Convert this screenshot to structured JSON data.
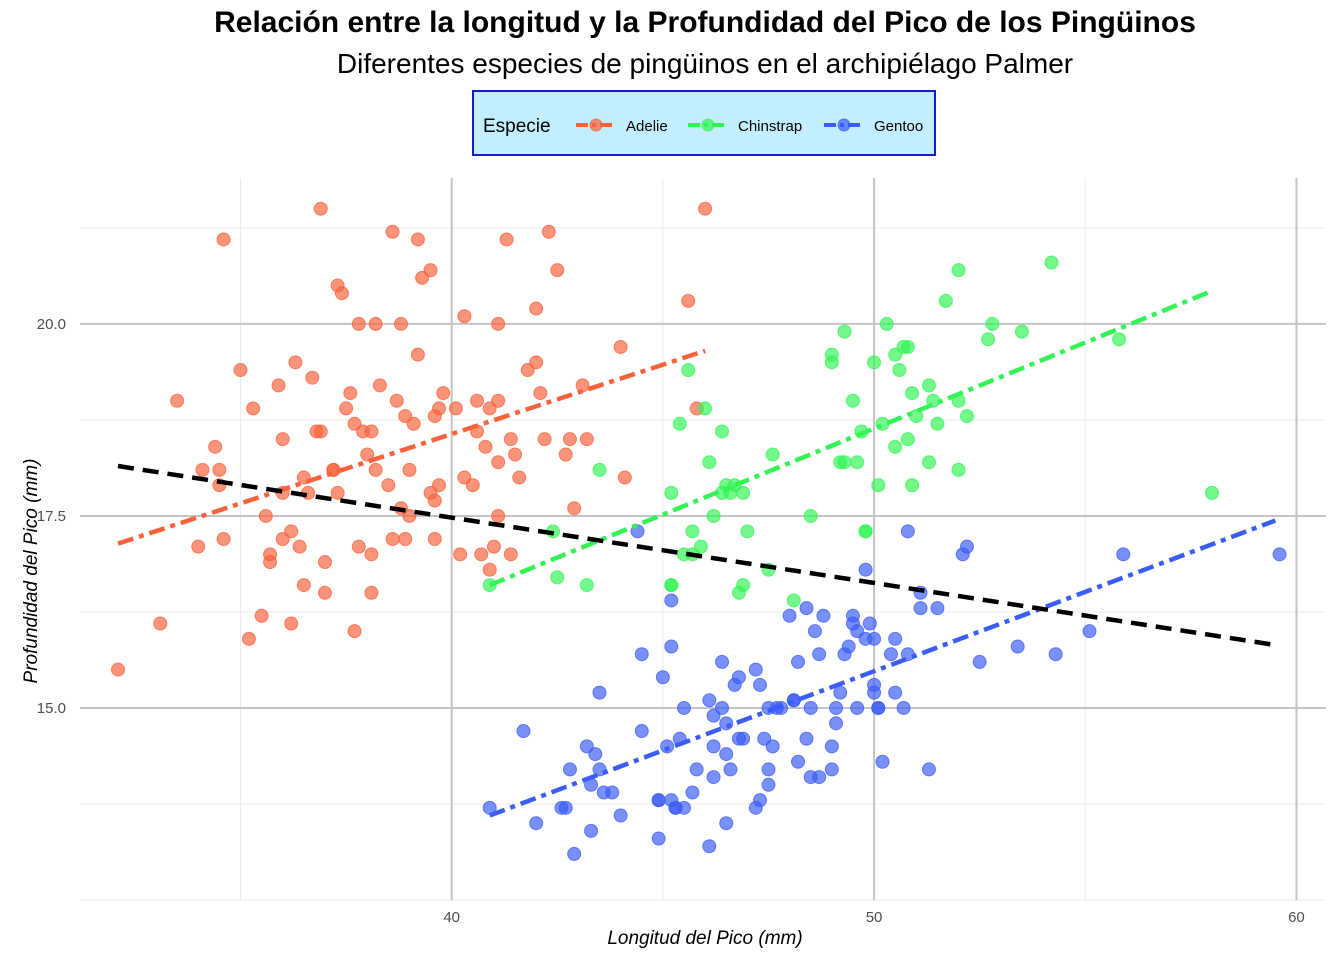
{
  "chart_data": {
    "type": "scatter",
    "title": "Relación entre la longitud y la Profundidad del Pico de los Pingüinos",
    "subtitle": "Diferentes especies de pingüinos en el archipiélago Palmer",
    "xlabel": "Longitud del Pico (mm)",
    "ylabel": "Profundidad del Pico (mm)",
    "xlim": [
      31.2,
      60.7
    ],
    "ylim": [
      12.5,
      21.9
    ],
    "x_ticks": [
      40,
      50,
      60
    ],
    "y_ticks": [
      15.0,
      17.5,
      20.0
    ],
    "x_tick_labels": [
      "40",
      "50",
      "60"
    ],
    "y_tick_labels": [
      "15.0",
      "17.5",
      "20.0"
    ],
    "grid": true,
    "legend": {
      "title": "Especie",
      "position": "top"
    },
    "series": [
      {
        "name": "Adelie",
        "color": "#f8623b",
        "trend": [
          [
            32.1,
            17.14
          ],
          [
            46.0,
            19.65
          ]
        ],
        "points": [
          [
            32.1,
            15.5
          ],
          [
            33.1,
            16.1
          ],
          [
            33.5,
            19.0
          ],
          [
            34.0,
            17.1
          ],
          [
            34.1,
            18.1
          ],
          [
            34.4,
            18.4
          ],
          [
            34.5,
            18.1
          ],
          [
            34.6,
            21.1
          ],
          [
            34.6,
            17.2
          ],
          [
            35.3,
            18.9
          ],
          [
            35.5,
            16.2
          ],
          [
            35.6,
            17.5
          ],
          [
            35.7,
            16.9
          ],
          [
            35.9,
            19.2
          ],
          [
            36.0,
            17.8
          ],
          [
            36.0,
            18.5
          ],
          [
            36.2,
            16.1
          ],
          [
            36.4,
            17.1
          ],
          [
            36.5,
            16.6
          ],
          [
            36.6,
            17.8
          ],
          [
            36.7,
            19.3
          ],
          [
            36.9,
            21.5
          ],
          [
            37.0,
            16.9
          ],
          [
            37.2,
            18.1
          ],
          [
            37.3,
            17.8
          ],
          [
            37.5,
            18.9
          ],
          [
            37.6,
            19.1
          ],
          [
            37.7,
            18.7
          ],
          [
            37.8,
            17.1
          ],
          [
            37.8,
            20.0
          ],
          [
            37.9,
            18.6
          ],
          [
            38.1,
            17.0
          ],
          [
            38.2,
            18.1
          ],
          [
            38.3,
            19.2
          ],
          [
            38.5,
            17.9
          ],
          [
            38.6,
            21.2
          ],
          [
            38.7,
            19.0
          ],
          [
            38.8,
            17.6
          ],
          [
            38.9,
            18.8
          ],
          [
            39.0,
            17.5
          ],
          [
            39.1,
            18.7
          ],
          [
            39.2,
            19.6
          ],
          [
            39.3,
            20.6
          ],
          [
            39.5,
            17.8
          ],
          [
            39.6,
            17.7
          ],
          [
            39.7,
            18.9
          ],
          [
            39.8,
            19.1
          ],
          [
            40.1,
            18.9
          ],
          [
            40.2,
            17.0
          ],
          [
            40.3,
            18.0
          ],
          [
            40.5,
            17.9
          ],
          [
            40.6,
            18.6
          ],
          [
            40.7,
            17.0
          ],
          [
            40.8,
            18.4
          ],
          [
            40.9,
            18.9
          ],
          [
            41.0,
            17.1
          ],
          [
            41.1,
            18.2
          ],
          [
            41.1,
            19.0
          ],
          [
            41.3,
            21.1
          ],
          [
            41.4,
            18.5
          ],
          [
            41.5,
            18.3
          ],
          [
            41.6,
            18.0
          ],
          [
            41.8,
            19.4
          ],
          [
            42.0,
            20.2
          ],
          [
            42.1,
            19.1
          ],
          [
            42.2,
            18.5
          ],
          [
            42.3,
            21.2
          ],
          [
            42.5,
            20.7
          ],
          [
            42.7,
            18.3
          ],
          [
            42.8,
            18.5
          ],
          [
            42.9,
            17.6
          ],
          [
            43.1,
            19.2
          ],
          [
            43.2,
            18.5
          ],
          [
            44.0,
            19.7
          ],
          [
            44.1,
            18.0
          ],
          [
            45.6,
            20.3
          ],
          [
            45.8,
            18.9
          ],
          [
            46.0,
            21.5
          ],
          [
            35.2,
            15.9
          ],
          [
            35.7,
            17.0
          ],
          [
            36.3,
            19.5
          ],
          [
            36.8,
            18.6
          ],
          [
            37.0,
            16.5
          ],
          [
            37.4,
            20.4
          ],
          [
            37.7,
            16.0
          ],
          [
            38.0,
            18.3
          ],
          [
            38.1,
            16.5
          ],
          [
            38.8,
            20.0
          ],
          [
            39.0,
            18.1
          ],
          [
            39.5,
            20.7
          ],
          [
            39.7,
            17.9
          ],
          [
            40.3,
            20.1
          ],
          [
            40.9,
            16.8
          ],
          [
            41.1,
            17.5
          ],
          [
            41.4,
            17.0
          ],
          [
            34.5,
            17.9
          ],
          [
            35.0,
            19.4
          ],
          [
            36.0,
            17.2
          ],
          [
            36.2,
            17.3
          ],
          [
            37.3,
            20.5
          ],
          [
            38.2,
            20.0
          ],
          [
            38.6,
            17.2
          ],
          [
            39.2,
            21.1
          ],
          [
            39.6,
            18.8
          ],
          [
            40.6,
            19.0
          ],
          [
            41.1,
            20.0
          ],
          [
            42.0,
            19.5
          ],
          [
            37.2,
            18.1
          ],
          [
            38.1,
            18.6
          ],
          [
            36.5,
            18.0
          ],
          [
            38.9,
            17.2
          ],
          [
            36.9,
            18.6
          ],
          [
            39.6,
            17.2
          ]
        ]
      },
      {
        "name": "Chinstrap",
        "color": "#32f455",
        "trend": [
          [
            40.9,
            16.6
          ],
          [
            58.0,
            20.43
          ]
        ],
        "points": [
          [
            40.9,
            16.6
          ],
          [
            42.4,
            17.3
          ],
          [
            42.5,
            16.7
          ],
          [
            43.2,
            16.6
          ],
          [
            43.5,
            18.1
          ],
          [
            45.2,
            17.8
          ],
          [
            45.2,
            16.6
          ],
          [
            45.4,
            18.7
          ],
          [
            45.5,
            17.0
          ],
          [
            45.6,
            19.4
          ],
          [
            45.7,
            17.3
          ],
          [
            45.9,
            17.1
          ],
          [
            46.0,
            18.9
          ],
          [
            46.1,
            18.2
          ],
          [
            46.2,
            17.5
          ],
          [
            46.4,
            18.6
          ],
          [
            46.5,
            17.9
          ],
          [
            46.6,
            17.8
          ],
          [
            46.7,
            17.9
          ],
          [
            46.8,
            16.5
          ],
          [
            46.9,
            16.6
          ],
          [
            47.0,
            17.3
          ],
          [
            47.5,
            16.8
          ],
          [
            47.6,
            18.3
          ],
          [
            48.1,
            16.4
          ],
          [
            48.5,
            17.5
          ],
          [
            49.0,
            19.5
          ],
          [
            49.0,
            19.6
          ],
          [
            49.2,
            18.2
          ],
          [
            49.3,
            19.9
          ],
          [
            49.5,
            19.0
          ],
          [
            49.6,
            18.2
          ],
          [
            49.7,
            18.6
          ],
          [
            49.8,
            17.3
          ],
          [
            50.0,
            19.5
          ],
          [
            50.1,
            17.9
          ],
          [
            50.2,
            18.7
          ],
          [
            50.3,
            20.0
          ],
          [
            50.5,
            18.4
          ],
          [
            50.6,
            19.4
          ],
          [
            50.7,
            19.7
          ],
          [
            50.8,
            18.5
          ],
          [
            50.9,
            19.1
          ],
          [
            51.0,
            18.8
          ],
          [
            51.3,
            18.2
          ],
          [
            51.4,
            19.0
          ],
          [
            51.5,
            18.7
          ],
          [
            51.7,
            20.3
          ],
          [
            52.0,
            18.1
          ],
          [
            52.0,
            19.0
          ],
          [
            52.0,
            20.7
          ],
          [
            52.2,
            18.8
          ],
          [
            52.7,
            19.8
          ],
          [
            52.8,
            20.0
          ],
          [
            53.5,
            19.9
          ],
          [
            54.2,
            20.8
          ],
          [
            55.8,
            19.8
          ],
          [
            58.0,
            17.8
          ],
          [
            45.2,
            16.6
          ],
          [
            46.9,
            17.8
          ],
          [
            49.3,
            18.2
          ],
          [
            50.8,
            19.7
          ],
          [
            51.3,
            19.2
          ],
          [
            50.5,
            19.6
          ],
          [
            50.9,
            17.9
          ],
          [
            49.8,
            17.3
          ],
          [
            45.7,
            17.0
          ],
          [
            46.4,
            17.8
          ]
        ]
      },
      {
        "name": "Gentoo",
        "color": "#3b5cf6",
        "trend": [
          [
            40.9,
            13.6
          ],
          [
            59.5,
            17.44
          ]
        ],
        "points": [
          [
            40.9,
            13.7
          ],
          [
            41.7,
            14.7
          ],
          [
            42.0,
            13.5
          ],
          [
            42.6,
            13.7
          ],
          [
            42.7,
            13.7
          ],
          [
            42.8,
            14.2
          ],
          [
            42.9,
            13.1
          ],
          [
            43.2,
            14.5
          ],
          [
            43.3,
            14.0
          ],
          [
            43.3,
            13.4
          ],
          [
            43.5,
            14.2
          ],
          [
            43.5,
            15.2
          ],
          [
            43.6,
            13.9
          ],
          [
            43.8,
            13.9
          ],
          [
            44.0,
            13.6
          ],
          [
            44.4,
            17.3
          ],
          [
            44.5,
            15.7
          ],
          [
            44.5,
            14.7
          ],
          [
            44.9,
            13.3
          ],
          [
            44.9,
            13.8
          ],
          [
            45.0,
            15.4
          ],
          [
            45.1,
            14.5
          ],
          [
            45.2,
            13.8
          ],
          [
            45.2,
            15.8
          ],
          [
            45.2,
            16.4
          ],
          [
            45.3,
            13.7
          ],
          [
            45.4,
            14.6
          ],
          [
            45.5,
            13.7
          ],
          [
            45.5,
            15.0
          ],
          [
            45.7,
            13.9
          ],
          [
            45.8,
            14.2
          ],
          [
            46.1,
            15.1
          ],
          [
            46.1,
            13.2
          ],
          [
            46.2,
            14.5
          ],
          [
            46.2,
            14.9
          ],
          [
            46.4,
            15.6
          ],
          [
            46.4,
            15.0
          ],
          [
            46.5,
            14.8
          ],
          [
            46.5,
            13.5
          ],
          [
            46.6,
            14.2
          ],
          [
            46.7,
            15.3
          ],
          [
            46.8,
            14.6
          ],
          [
            46.8,
            15.4
          ],
          [
            46.9,
            14.6
          ],
          [
            47.2,
            13.7
          ],
          [
            47.2,
            15.5
          ],
          [
            47.3,
            13.8
          ],
          [
            47.4,
            14.6
          ],
          [
            47.5,
            14.2
          ],
          [
            47.5,
            15.0
          ],
          [
            47.6,
            14.5
          ],
          [
            47.7,
            15.0
          ],
          [
            47.8,
            15.0
          ],
          [
            48.1,
            15.1
          ],
          [
            48.2,
            14.3
          ],
          [
            48.2,
            15.6
          ],
          [
            48.4,
            14.6
          ],
          [
            48.4,
            16.3
          ],
          [
            48.5,
            14.1
          ],
          [
            48.5,
            15.0
          ],
          [
            48.6,
            16.0
          ],
          [
            48.7,
            14.1
          ],
          [
            48.7,
            15.7
          ],
          [
            48.8,
            16.2
          ],
          [
            49.0,
            14.2
          ],
          [
            49.1,
            14.8
          ],
          [
            49.1,
            15.0
          ],
          [
            49.2,
            15.2
          ],
          [
            49.3,
            15.7
          ],
          [
            49.4,
            15.8
          ],
          [
            49.5,
            16.2
          ],
          [
            49.5,
            16.1
          ],
          [
            49.6,
            15.0
          ],
          [
            49.6,
            16.0
          ],
          [
            49.8,
            16.8
          ],
          [
            49.8,
            15.9
          ],
          [
            49.9,
            16.1
          ],
          [
            50.0,
            15.2
          ],
          [
            50.0,
            15.3
          ],
          [
            50.0,
            15.9
          ],
          [
            50.1,
            15.0
          ],
          [
            50.2,
            14.3
          ],
          [
            50.4,
            15.7
          ],
          [
            50.5,
            15.9
          ],
          [
            50.5,
            15.2
          ],
          [
            50.7,
            15.0
          ],
          [
            50.8,
            15.7
          ],
          [
            50.8,
            17.3
          ],
          [
            51.1,
            16.3
          ],
          [
            51.1,
            16.5
          ],
          [
            51.3,
            14.2
          ],
          [
            51.5,
            16.3
          ],
          [
            52.1,
            17.0
          ],
          [
            52.2,
            17.1
          ],
          [
            52.5,
            15.6
          ],
          [
            53.4,
            15.8
          ],
          [
            54.3,
            15.7
          ],
          [
            55.1,
            16.0
          ],
          [
            55.9,
            17.0
          ],
          [
            59.6,
            17.0
          ],
          [
            47.5,
            14.0
          ],
          [
            46.2,
            14.1
          ],
          [
            49.0,
            14.5
          ],
          [
            48.1,
            15.1
          ],
          [
            50.1,
            15.0
          ],
          [
            47.3,
            15.3
          ],
          [
            44.9,
            13.8
          ],
          [
            46.5,
            14.4
          ],
          [
            43.4,
            14.4
          ],
          [
            45.3,
            13.7
          ],
          [
            48.0,
            16.2
          ]
        ]
      },
      {
        "name": "",
        "color": "#000000",
        "trend": [
          [
            32.1,
            18.15
          ],
          [
            59.5,
            15.82
          ]
        ],
        "points": []
      }
    ]
  }
}
